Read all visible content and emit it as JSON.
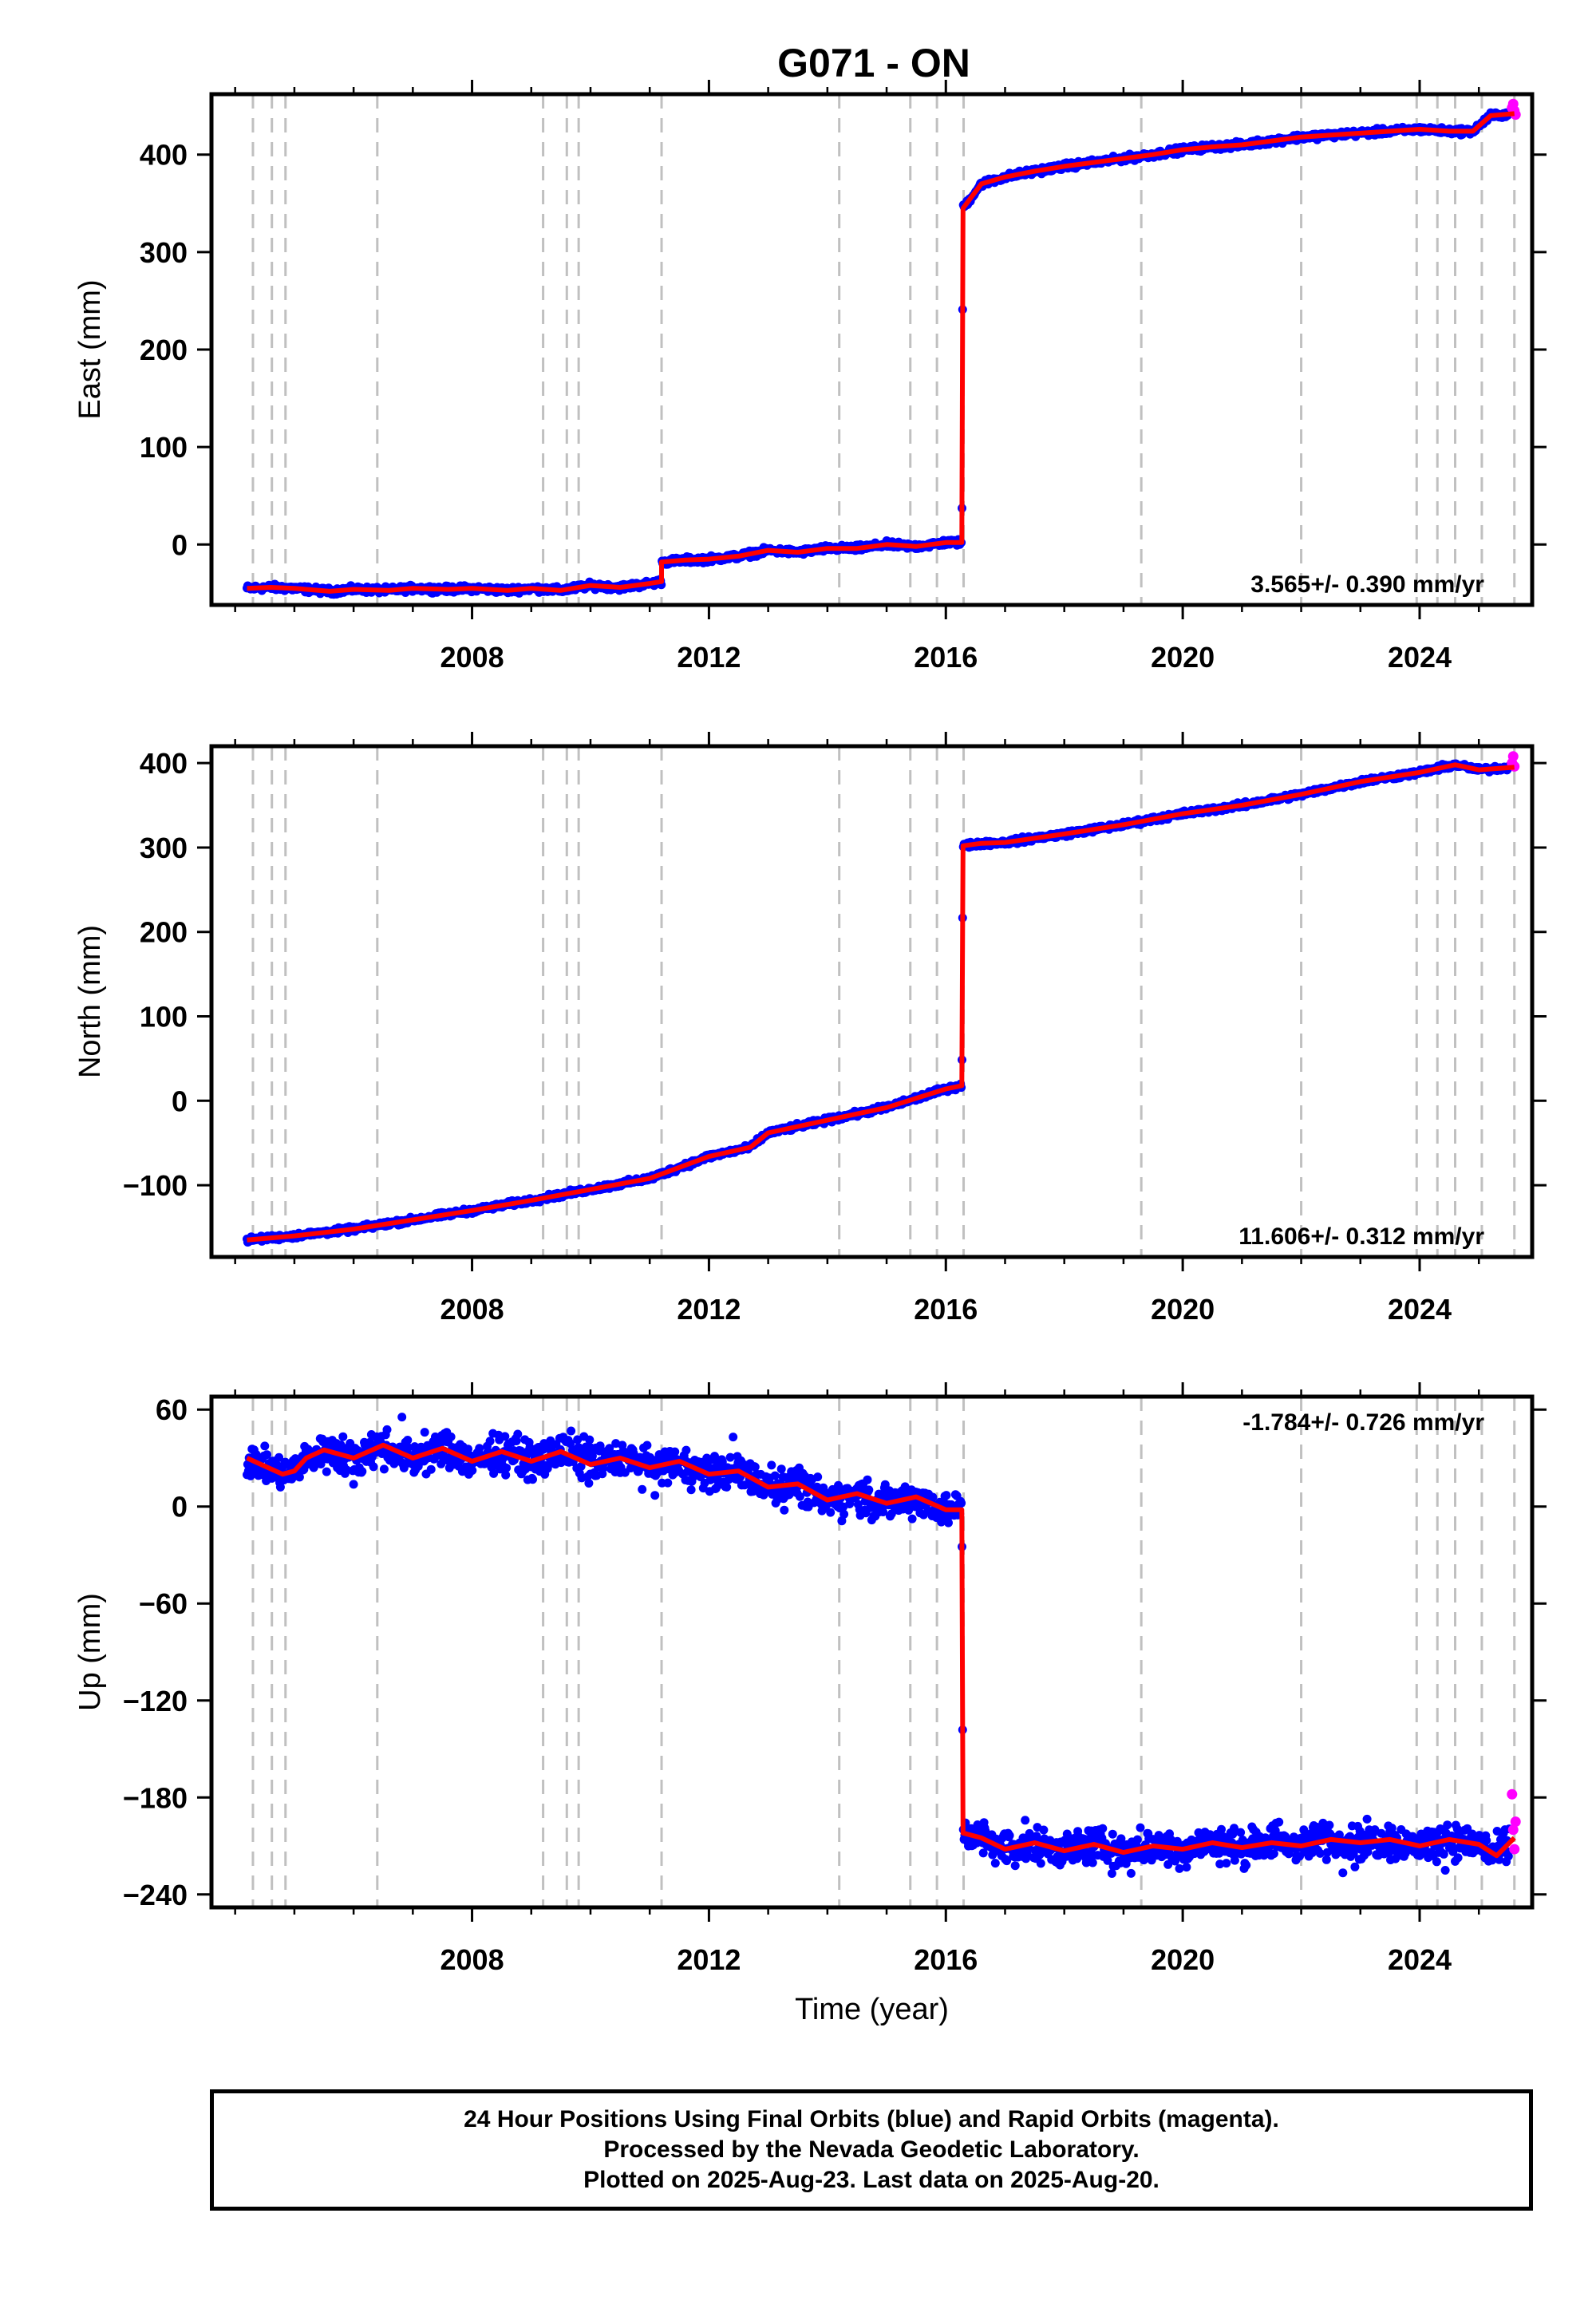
{
  "title": "G071 - ON",
  "footer": {
    "line1": "24 Hour Positions Using Final Orbits (blue) and Rapid Orbits (magenta).",
    "line2": "Processed by the Nevada Geodetic Laboratory.",
    "line3": "Plotted on 2025-Aug-23. Last data on 2025-Aug-20."
  },
  "colors": {
    "final": "#0000ff",
    "rapid": "#ff00ff",
    "model": "#ff0000",
    "events": "#c0c0c0"
  },
  "chart_data": [
    {
      "type": "scatter",
      "ylabel": "East (mm)",
      "xlim": [
        2003.6,
        2025.9
      ],
      "ylim": [
        -62,
        462
      ],
      "xticks": [
        "2008",
        "2012",
        "2016",
        "2020",
        "2024"
      ],
      "xtick_values": [
        2008,
        2012,
        2016,
        2020,
        2024
      ],
      "yticks": [
        "0",
        "100",
        "200",
        "300",
        "400"
      ],
      "ytick_values": [
        0,
        100,
        200,
        300,
        400
      ],
      "rate_label": "3.565+/- 0.390 mm/yr",
      "rate_position": "bottom-right",
      "model": {
        "x": [
          2004.2,
          2004.6,
          2005.0,
          2005.6,
          2006.0,
          2006.6,
          2007.0,
          2007.6,
          2008.0,
          2008.6,
          2009.0,
          2009.5,
          2010.0,
          2010.5,
          2011.0,
          2011.2,
          2011.2,
          2011.6,
          2012.0,
          2012.5,
          2013.0,
          2013.5,
          2014.0,
          2014.5,
          2015.0,
          2015.5,
          2016.0,
          2016.27,
          2016.29,
          2016.6,
          2017.0,
          2017.5,
          2018.0,
          2018.5,
          2019.0,
          2019.5,
          2020.0,
          2020.5,
          2021.0,
          2021.5,
          2022.0,
          2022.5,
          2023.0,
          2023.5,
          2024.0,
          2024.5,
          2024.9,
          2025.2,
          2025.6
        ],
        "y": [
          -45,
          -44,
          -45,
          -48,
          -46,
          -47,
          -45,
          -46,
          -45,
          -47,
          -45,
          -47,
          -42,
          -44,
          -40,
          -38,
          -18,
          -16,
          -15,
          -12,
          -6,
          -8,
          -4,
          -4,
          0,
          -2,
          2,
          2,
          345,
          370,
          377,
          383,
          388,
          392,
          396,
          400,
          405,
          408,
          410,
          414,
          418,
          420,
          422,
          424,
          426,
          424,
          424,
          440,
          442
        ]
      },
      "rapid_points": {
        "x": [
          2025.56,
          2025.58,
          2025.6,
          2025.62
        ],
        "y": [
          448,
          452,
          445,
          441
        ]
      },
      "event_years": [
        2004.3,
        2004.62,
        2004.85,
        2006.4,
        2009.2,
        2009.6,
        2009.8,
        2011.2,
        2014.2,
        2015.4,
        2015.85,
        2016.3,
        2019.3,
        2022.0,
        2023.95,
        2024.3,
        2024.6,
        2025.05,
        2025.6
      ]
    },
    {
      "type": "scatter",
      "ylabel": "North (mm)",
      "xlim": [
        2003.6,
        2025.9
      ],
      "ylim": [
        -185,
        420
      ],
      "xticks": [
        "2008",
        "2012",
        "2016",
        "2020",
        "2024"
      ],
      "xtick_values": [
        2008,
        2012,
        2016,
        2020,
        2024
      ],
      "yticks": [
        "−100",
        "0",
        "100",
        "200",
        "300",
        "400"
      ],
      "ytick_values": [
        -100,
        0,
        100,
        200,
        300,
        400
      ],
      "rate_label": "11.606+/- 0.312 mm/yr",
      "rate_position": "bottom-right",
      "model": {
        "x": [
          2004.2,
          2005.0,
          2006.0,
          2007.0,
          2008.0,
          2009.0,
          2010.0,
          2011.0,
          2012.0,
          2012.7,
          2013.0,
          2014.0,
          2015.0,
          2016.0,
          2016.27,
          2016.29,
          2016.6,
          2017.0,
          2018.0,
          2019.0,
          2020.0,
          2021.0,
          2022.0,
          2023.0,
          2024.0,
          2024.6,
          2025.0,
          2025.6
        ],
        "y": [
          -165,
          -160,
          -152,
          -141,
          -130,
          -118,
          -105,
          -92,
          -66,
          -55,
          -38,
          -23,
          -8,
          14,
          18,
          302,
          305,
          306,
          316,
          327,
          340,
          350,
          363,
          378,
          389,
          398,
          392,
          395
        ]
      },
      "rapid_points": {
        "x": [
          2025.56,
          2025.58,
          2025.6
        ],
        "y": [
          400,
          408,
          396
        ]
      },
      "event_years": [
        2004.3,
        2004.62,
        2004.85,
        2006.4,
        2009.2,
        2009.6,
        2009.8,
        2011.2,
        2014.2,
        2015.4,
        2015.85,
        2016.3,
        2019.3,
        2022.0,
        2023.95,
        2024.3,
        2024.6,
        2025.05,
        2025.6
      ]
    },
    {
      "type": "scatter",
      "ylabel": "Up (mm)",
      "xlabel": "Time (year)",
      "xlim": [
        2003.6,
        2025.9
      ],
      "ylim": [
        -248,
        68
      ],
      "xticks": [
        "2008",
        "2012",
        "2016",
        "2020",
        "2024"
      ],
      "xtick_values": [
        2008,
        2012,
        2016,
        2020,
        2024
      ],
      "yticks": [
        "60",
        "0",
        "−60",
        "−120",
        "−180",
        "−240"
      ],
      "ytick_values": [
        60,
        0,
        -60,
        -120,
        -180,
        -240
      ],
      "rate_label": "-1.784+/- 0.726 mm/yr",
      "rate_position": "top-right",
      "model": {
        "x": [
          2004.2,
          2004.5,
          2004.8,
          2005.0,
          2005.2,
          2005.5,
          2006.0,
          2006.5,
          2007.0,
          2007.5,
          2008.0,
          2008.5,
          2009.0,
          2009.5,
          2010.0,
          2010.5,
          2011.0,
          2011.5,
          2012.0,
          2012.5,
          2013.0,
          2013.5,
          2014.0,
          2014.5,
          2015.0,
          2015.5,
          2016.0,
          2016.27,
          2016.29,
          2016.6,
          2017.0,
          2017.5,
          2018.0,
          2018.5,
          2019.0,
          2019.5,
          2020.0,
          2020.5,
          2021.0,
          2021.5,
          2022.0,
          2022.5,
          2023.0,
          2023.5,
          2024.0,
          2024.5,
          2025.0,
          2025.3,
          2025.6
        ],
        "y": [
          30,
          25,
          20,
          22,
          30,
          35,
          30,
          38,
          30,
          36,
          28,
          34,
          28,
          34,
          26,
          30,
          24,
          28,
          20,
          22,
          12,
          14,
          4,
          8,
          2,
          6,
          -2,
          -2,
          -202,
          -205,
          -212,
          -208,
          -213,
          -209,
          -214,
          -210,
          -212,
          -208,
          -211,
          -208,
          -210,
          -206,
          -208,
          -206,
          -210,
          -206,
          -209,
          -216,
          -205
        ]
      },
      "rapid_points": {
        "x": [
          2025.56,
          2025.58,
          2025.6,
          2025.62
        ],
        "y": [
          -178,
          -200,
          -212,
          -195
        ]
      },
      "event_years": [
        2004.3,
        2004.62,
        2004.85,
        2006.4,
        2009.2,
        2009.6,
        2009.8,
        2011.2,
        2014.2,
        2015.4,
        2015.85,
        2016.3,
        2019.3,
        2022.0,
        2023.95,
        2024.3,
        2024.6,
        2025.05,
        2025.6
      ]
    }
  ]
}
